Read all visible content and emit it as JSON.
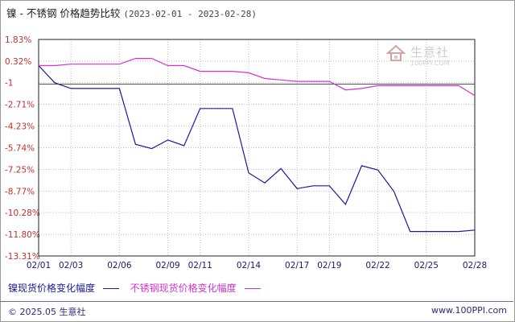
{
  "header": {
    "title": "镍 - 不锈钢 价格趋势比较",
    "date_range": "(2023-02-01 - 2023-02-28)"
  },
  "watermark": {
    "text": "生意社",
    "sub": "100PPI.COM"
  },
  "footer": {
    "copyright": "© 2025.05 生意社",
    "site": "www.100PPI.com"
  },
  "colors": {
    "nickel": "#1a1a9a",
    "stainless": "#d233d2",
    "axis": "#222222",
    "grid": "#bdbdbd"
  },
  "chart_data": {
    "type": "line",
    "x": [
      "02/01",
      "02/02",
      "02/03",
      "02/06",
      "02/07",
      "02/08",
      "02/09",
      "02/10",
      "02/13",
      "02/14",
      "02/15",
      "02/16",
      "02/17",
      "02/20",
      "02/21",
      "02/22",
      "02/23",
      "02/24",
      "02/27",
      "02/28"
    ],
    "x_tick_labels": [
      "02/01",
      "02/03",
      "02/06",
      "02/09",
      "02/11",
      "02/14",
      "02/17",
      "02/19",
      "02/22",
      "02/25",
      "02/28"
    ],
    "y_tick_labels": [
      "1.83%",
      "0.32%",
      "-1",
      "-2.71%",
      "-4.23%",
      "-5.74%",
      "-7.25%",
      "-8.77%",
      "-10.28%",
      "-11.80%",
      "-13.31%"
    ],
    "y_ticks": [
      1.83,
      0.32,
      -1.19,
      -2.71,
      -4.23,
      -5.74,
      -7.25,
      -8.77,
      -10.28,
      -11.8,
      -13.31
    ],
    "ylim": [
      -13.31,
      1.83
    ],
    "grid": true,
    "legend_position": "bottom-left",
    "series": [
      {
        "name": "镍现货价格变化幅度",
        "color": "#1a1a9a",
        "points": [
          [
            "02/01",
            0.0
          ],
          [
            "02/02",
            -1.2
          ],
          [
            "02/03",
            -1.6
          ],
          [
            "02/06",
            -1.6
          ],
          [
            "02/07",
            -5.5
          ],
          [
            "02/08",
            -5.8
          ],
          [
            "02/09",
            -5.2
          ],
          [
            "02/10",
            -5.6
          ],
          [
            "02/11",
            -3.0
          ],
          [
            "02/13",
            -3.0
          ],
          [
            "02/14",
            -7.5
          ],
          [
            "02/15",
            -8.2
          ],
          [
            "02/16",
            -7.2
          ],
          [
            "02/17",
            -8.6
          ],
          [
            "02/18",
            -8.4
          ],
          [
            "02/19",
            -8.4
          ],
          [
            "02/20",
            -9.7
          ],
          [
            "02/21",
            -7.0
          ],
          [
            "02/22",
            -7.3
          ],
          [
            "02/23",
            -8.8
          ],
          [
            "02/24",
            -11.6
          ],
          [
            "02/27",
            -11.6
          ],
          [
            "02/28",
            -11.5
          ]
        ]
      },
      {
        "name": "不锈钢现货价格变化幅度",
        "color": "#d233d2",
        "points": [
          [
            "02/01",
            0.0
          ],
          [
            "02/02",
            0.0
          ],
          [
            "02/03",
            0.1
          ],
          [
            "02/06",
            0.1
          ],
          [
            "02/07",
            0.5
          ],
          [
            "02/08",
            0.5
          ],
          [
            "02/09",
            0.0
          ],
          [
            "02/10",
            0.0
          ],
          [
            "02/11",
            -0.4
          ],
          [
            "02/13",
            -0.4
          ],
          [
            "02/14",
            -0.5
          ],
          [
            "02/15",
            -0.9
          ],
          [
            "02/16",
            -1.0
          ],
          [
            "02/17",
            -1.1
          ],
          [
            "02/18",
            -1.1
          ],
          [
            "02/19",
            -1.1
          ],
          [
            "02/20",
            -1.7
          ],
          [
            "02/21",
            -1.6
          ],
          [
            "02/22",
            -1.4
          ],
          [
            "02/23",
            -1.4
          ],
          [
            "02/24",
            -1.4
          ],
          [
            "02/27",
            -1.4
          ],
          [
            "02/28",
            -2.1
          ]
        ]
      }
    ]
  }
}
